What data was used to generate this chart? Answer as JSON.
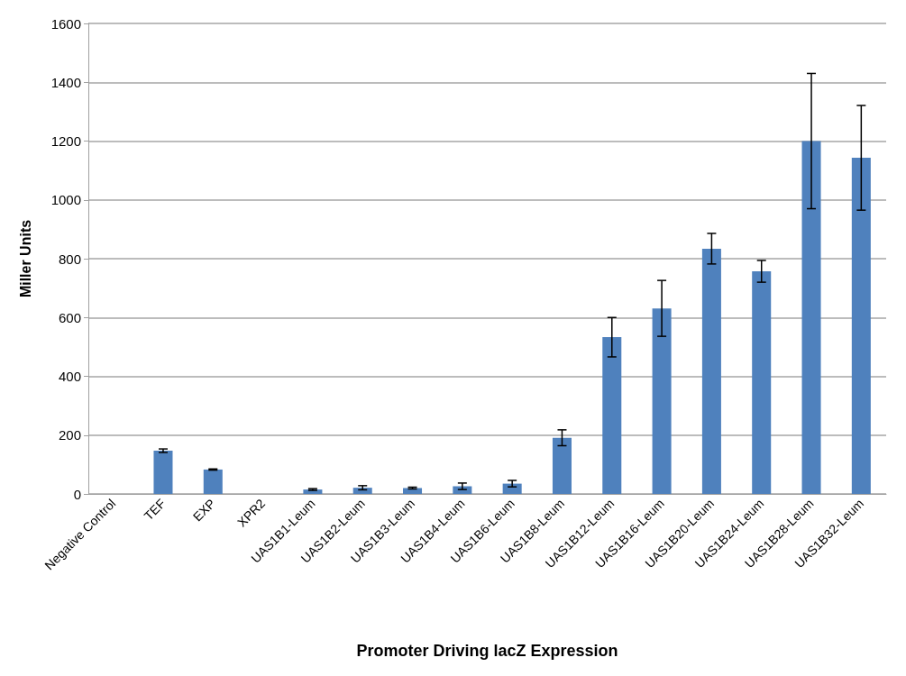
{
  "chart_data": {
    "type": "bar",
    "xlabel": "Promoter Driving lacZ Expression",
    "ylabel": "Miller Units",
    "categories": [
      "Negative Control",
      "TEF",
      "EXP",
      "XPR2",
      "UAS1B1-Leum",
      "UAS1B2-Leum",
      "UAS1B3-Leum",
      "UAS1B4-Leum",
      "UAS1B6-Leum",
      "UAS1B8-Leum",
      "UAS1B12-Leum",
      "UAS1B16-Leum",
      "UAS1B20-Leum",
      "UAS1B24-Leum",
      "UAS1B28-Leum",
      "UAS1B32-Leum"
    ],
    "values": [
      0,
      147,
      83,
      0,
      15,
      21,
      20,
      26,
      35,
      191,
      533,
      631,
      834,
      757,
      1200,
      1143
    ],
    "errors": [
      null,
      6,
      2,
      null,
      3,
      7,
      3,
      11,
      11,
      27,
      67,
      95,
      52,
      37,
      230,
      178
    ],
    "color": "#4f81bd",
    "ylim": [
      0,
      1600
    ],
    "yticks": [
      0,
      200,
      400,
      600,
      800,
      1000,
      1200,
      1400,
      1600
    ],
    "grid": "y"
  }
}
